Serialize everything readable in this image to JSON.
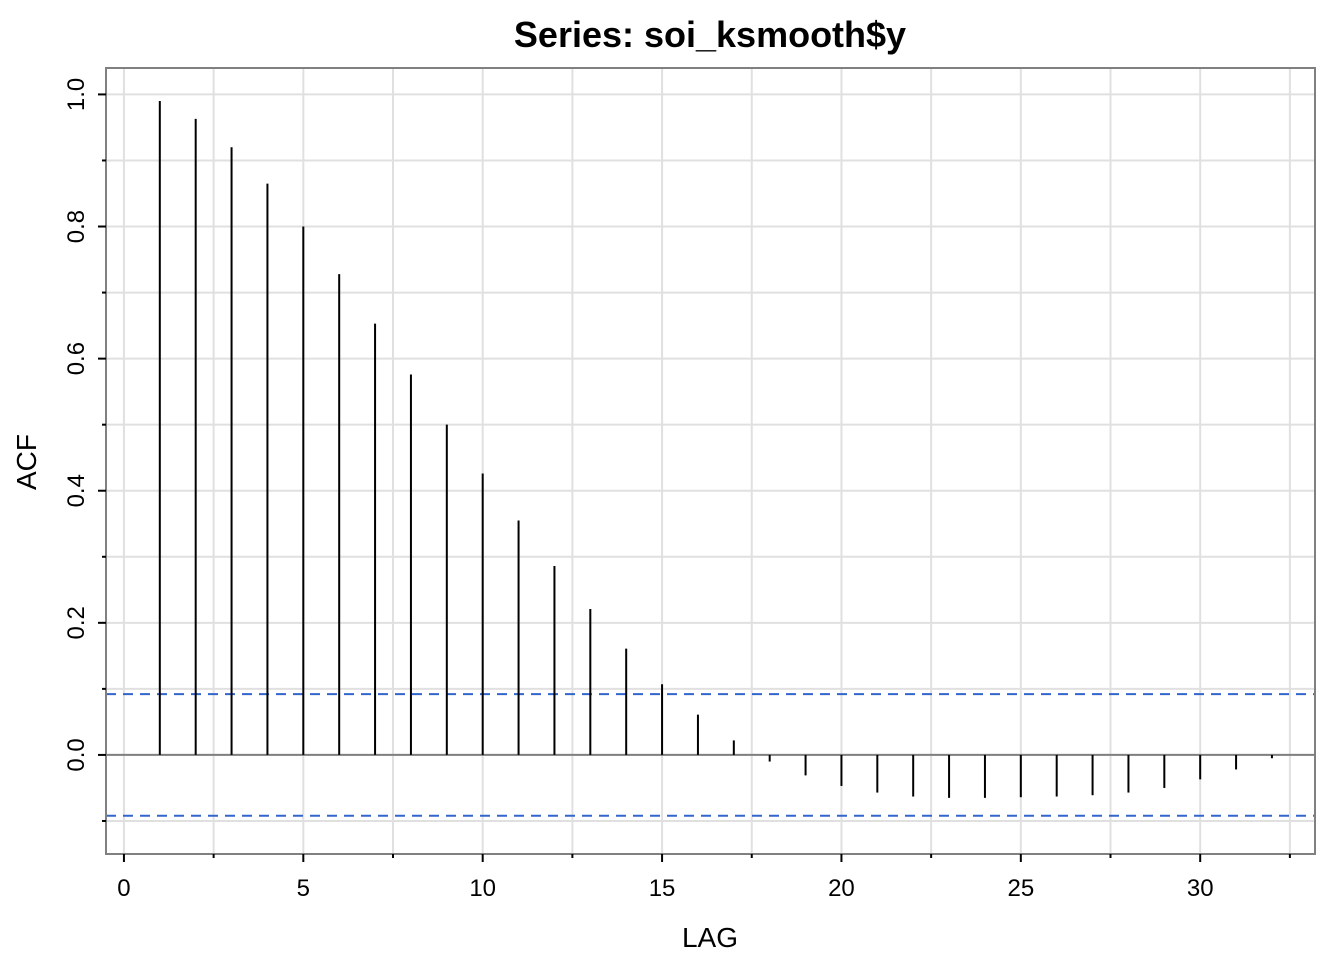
{
  "chart_data": {
    "type": "bar",
    "title": "Series:  soi_ksmooth$y",
    "xlabel": "LAG",
    "ylabel": "ACF",
    "xlim": [
      -0.5,
      33.2
    ],
    "ylim": [
      -0.15,
      1.04
    ],
    "xticks": [
      0,
      5,
      10,
      15,
      20,
      25,
      30
    ],
    "yticks": [
      0.0,
      0.2,
      0.4,
      0.6,
      0.8,
      1.0
    ],
    "yticks_labels": [
      "0.0",
      "0.2",
      "0.4",
      "0.6",
      "0.8",
      "1.0"
    ],
    "grid": true,
    "lags": [
      1,
      2,
      3,
      4,
      5,
      6,
      7,
      8,
      9,
      10,
      11,
      12,
      13,
      14,
      15,
      16,
      17,
      18,
      19,
      20,
      21,
      22,
      23,
      24,
      25,
      26,
      27,
      28,
      29,
      30,
      31,
      32
    ],
    "values": [
      0.99,
      0.963,
      0.92,
      0.865,
      0.8,
      0.728,
      0.653,
      0.576,
      0.5,
      0.426,
      0.355,
      0.286,
      0.221,
      0.161,
      0.107,
      0.061,
      0.022,
      -0.01,
      -0.031,
      -0.047,
      -0.057,
      -0.063,
      -0.065,
      -0.065,
      -0.064,
      -0.063,
      -0.061,
      -0.057,
      -0.05,
      -0.037,
      -0.022,
      -0.005
    ],
    "confidence_bound": 0.092,
    "colors": {
      "spike": "#000000",
      "bound": "#3366cc",
      "grid": "#e0e0e0",
      "frame": "#808080"
    }
  }
}
